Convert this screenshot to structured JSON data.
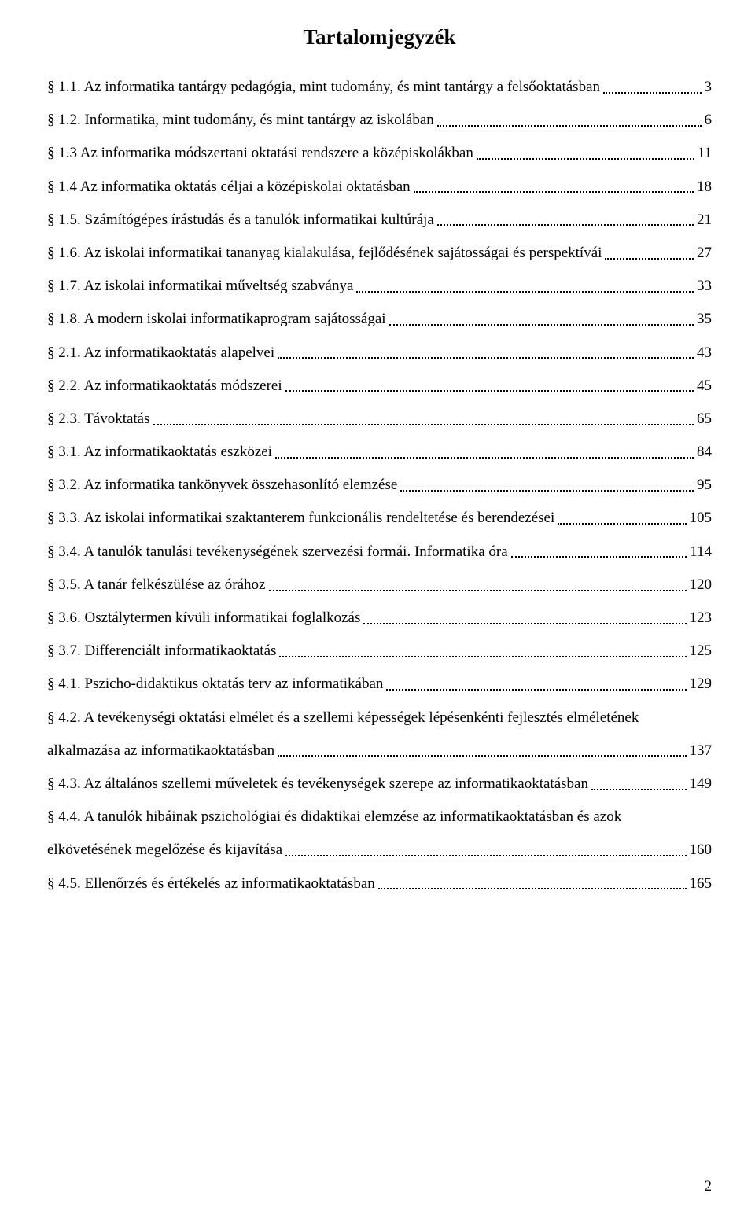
{
  "title": "Tartalomjegyzék",
  "entries": [
    {
      "text": "§ 1.1. Az informatika tantárgy pedagógia, mint tudomány, és mint tantárgy a felsőoktatásban",
      "page": "3"
    },
    {
      "text": "§ 1.2. Informatika, mint tudomány, és mint tantárgy az iskolában",
      "page": "6"
    },
    {
      "text": "§ 1.3 Az informatika módszertani oktatási rendszere a középiskolákban",
      "page": "11"
    },
    {
      "text": "§ 1.4 Az informatika oktatás céljai a középiskolai oktatásban",
      "page": "18"
    },
    {
      "text": "§ 1.5. Számítógépes írástudás és a tanulók informatikai kultúrája",
      "page": "21"
    },
    {
      "text": "§ 1.6. Az iskolai informatikai tananyag kialakulása, fejlődésének sajátosságai és perspektívái",
      "page": "27"
    },
    {
      "text": "§ 1.7. Az iskolai informatikai műveltség szabványa",
      "page": "33"
    },
    {
      "text": "§ 1.8. A modern iskolai informatikaprogram sajátosságai",
      "page": "35"
    },
    {
      "text": "§ 2.1. Az informatikaoktatás alapelvei",
      "page": "43"
    },
    {
      "text": "§ 2.2. Az informatikaoktatás módszerei",
      "page": "45"
    },
    {
      "text": "§ 2.3. Távoktatás",
      "page": "65"
    },
    {
      "text": "§ 3.1. Az informatikaoktatás eszközei",
      "page": "84"
    },
    {
      "text": "§ 3.2. Az informatika tankönyvek összehasonlító elemzése",
      "page": "95"
    },
    {
      "text": "§ 3.3. Az iskolai informatikai szaktanterem funkcionális rendeltetése és berendezései",
      "page": "105"
    },
    {
      "text": "§ 3.4. A tanulók tanulási tevékenységének szervezési formái. Informatika óra",
      "page": "114"
    },
    {
      "text": "§ 3.5. A tanár felkészülése az órához",
      "page": "120"
    },
    {
      "text": "§ 3.6. Osztálytermen kívüli informatikai foglalkozás",
      "page": "123"
    },
    {
      "text": "§ 3.7. Differenciált informatikaoktatás",
      "page": "125"
    },
    {
      "text": "§ 4.1. Pszicho-didaktikus oktatás terv az informatikában",
      "page": "129"
    },
    {
      "text": "§ 4.2. A tevékenységi oktatási elmélet és a szellemi képességek lépésenkénti fejlesztés elméletének",
      "line2": "alkalmazása az informatikaoktatásban",
      "page": "137"
    },
    {
      "text": "§ 4.3. Az általános szellemi műveletek és tevékenységek szerepe az informatikaoktatásban",
      "page": "149"
    },
    {
      "text": "§ 4.4. A tanulók hibáinak pszichológiai és didaktikai elemzése az informatikaoktatásban és azok",
      "line2": "elkövetésének megelőzése és kijavítása",
      "page": "160"
    },
    {
      "text": "§ 4.5. Ellenőrzés és értékelés az informatikaoktatásban",
      "page": "165"
    }
  ],
  "pageNumber": "2"
}
